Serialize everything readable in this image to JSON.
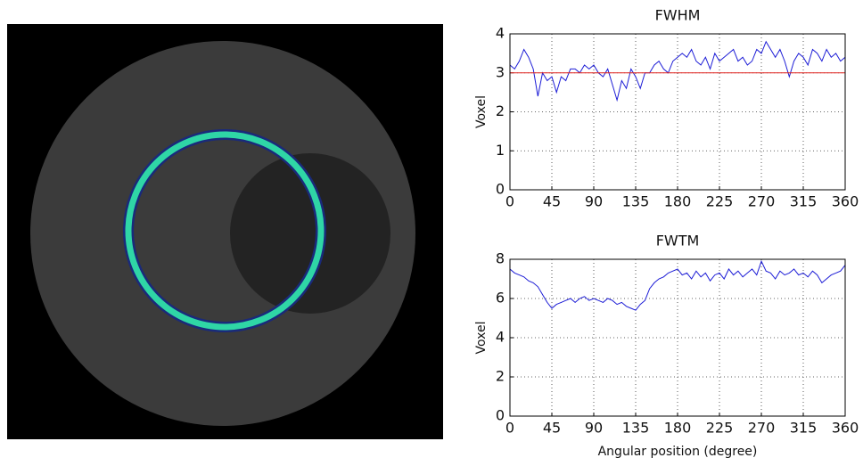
{
  "chart_data": [
    {
      "type": "line",
      "title": "FWHM",
      "ylabel": "Voxel",
      "xlim": [
        0,
        360
      ],
      "xticks": [
        0,
        45,
        90,
        135,
        180,
        225,
        270,
        315,
        360
      ],
      "ylim": [
        0,
        4
      ],
      "yticks": [
        0,
        1,
        2,
        3,
        4
      ],
      "grid": true,
      "series": [
        {
          "color": "#1c1cd6",
          "x": [
            0,
            5,
            10,
            15,
            20,
            25,
            30,
            35,
            40,
            45,
            50,
            55,
            60,
            65,
            70,
            75,
            80,
            85,
            90,
            95,
            100,
            105,
            110,
            115,
            120,
            125,
            130,
            135,
            140,
            145,
            150,
            155,
            160,
            165,
            170,
            175,
            180,
            185,
            190,
            195,
            200,
            205,
            210,
            215,
            220,
            225,
            230,
            235,
            240,
            245,
            250,
            255,
            260,
            265,
            270,
            275,
            280,
            285,
            290,
            295,
            300,
            305,
            310,
            315,
            320,
            325,
            330,
            335,
            340,
            345,
            350,
            355,
            360
          ],
          "values": [
            3.2,
            3.1,
            3.3,
            3.6,
            3.4,
            3.1,
            2.4,
            3.0,
            2.8,
            2.9,
            2.5,
            2.9,
            2.8,
            3.1,
            3.1,
            3.0,
            3.2,
            3.1,
            3.2,
            3.0,
            2.9,
            3.1,
            2.7,
            2.3,
            2.8,
            2.6,
            3.1,
            2.9,
            2.6,
            3.0,
            3.0,
            3.2,
            3.3,
            3.1,
            3.0,
            3.3,
            3.4,
            3.5,
            3.4,
            3.6,
            3.3,
            3.2,
            3.4,
            3.1,
            3.5,
            3.3,
            3.4,
            3.5,
            3.6,
            3.3,
            3.4,
            3.2,
            3.3,
            3.6,
            3.5,
            3.8,
            3.6,
            3.4,
            3.6,
            3.3,
            2.9,
            3.3,
            3.5,
            3.4,
            3.2,
            3.6,
            3.5,
            3.3,
            3.6,
            3.4,
            3.5,
            3.3,
            3.4
          ]
        },
        {
          "color": "#e0201c",
          "x": [
            0,
            360
          ],
          "values": [
            3,
            3
          ]
        }
      ]
    },
    {
      "type": "line",
      "title": "FWTM",
      "ylabel": "Voxel",
      "xlabel": "Angular position (degree)",
      "xlim": [
        0,
        360
      ],
      "xticks": [
        0,
        45,
        90,
        135,
        180,
        225,
        270,
        315,
        360
      ],
      "ylim": [
        0,
        8
      ],
      "yticks": [
        0,
        2,
        4,
        6,
        8
      ],
      "grid": true,
      "series": [
        {
          "color": "#1c1cd6",
          "x": [
            0,
            5,
            10,
            15,
            20,
            25,
            30,
            35,
            40,
            45,
            50,
            55,
            60,
            65,
            70,
            75,
            80,
            85,
            90,
            95,
            100,
            105,
            110,
            115,
            120,
            125,
            130,
            135,
            140,
            145,
            150,
            155,
            160,
            165,
            170,
            175,
            180,
            185,
            190,
            195,
            200,
            205,
            210,
            215,
            220,
            225,
            230,
            235,
            240,
            245,
            250,
            255,
            260,
            265,
            270,
            275,
            280,
            285,
            290,
            295,
            300,
            305,
            310,
            315,
            320,
            325,
            330,
            335,
            340,
            345,
            350,
            355,
            360
          ],
          "values": [
            7.5,
            7.3,
            7.2,
            7.1,
            6.9,
            6.8,
            6.6,
            6.2,
            5.8,
            5.5,
            5.7,
            5.8,
            5.9,
            6.0,
            5.8,
            6.0,
            6.1,
            5.9,
            6.0,
            5.9,
            5.8,
            6.0,
            5.9,
            5.7,
            5.8,
            5.6,
            5.5,
            5.4,
            5.7,
            5.9,
            6.5,
            6.8,
            7.0,
            7.1,
            7.3,
            7.4,
            7.5,
            7.2,
            7.3,
            7.0,
            7.4,
            7.1,
            7.3,
            6.9,
            7.2,
            7.3,
            7.0,
            7.5,
            7.2,
            7.4,
            7.1,
            7.3,
            7.5,
            7.2,
            7.9,
            7.4,
            7.3,
            7.0,
            7.4,
            7.2,
            7.3,
            7.5,
            7.2,
            7.3,
            7.1,
            7.4,
            7.2,
            6.8,
            7.0,
            7.2,
            7.3,
            7.4,
            7.7
          ]
        }
      ]
    }
  ]
}
